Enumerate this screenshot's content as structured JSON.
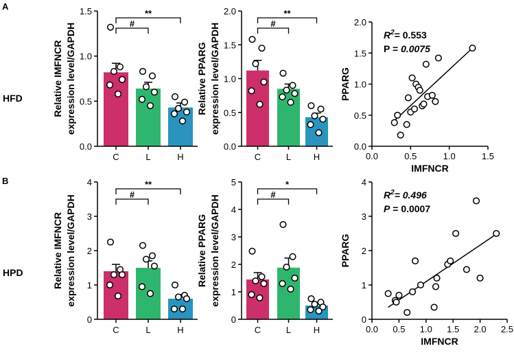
{
  "panel_labels": {
    "a": "A",
    "b": "B"
  },
  "row_labels": {
    "top": "HFD",
    "bottom": "HPD"
  },
  "colors": {
    "C": "#cc2f6a",
    "L": "#2fb66e",
    "H": "#2a94bf",
    "ink": "#000000"
  },
  "chart_data": [
    {
      "id": "a1",
      "type": "bar",
      "title": "",
      "ylabel": "Relative IMFNCR\nexpression level/GAPDH",
      "categories": [
        "C",
        "L",
        "H"
      ],
      "values": [
        0.82,
        0.64,
        0.43
      ],
      "errors": [
        0.1,
        0.07,
        0.05
      ],
      "points": [
        [
          1.32,
          0.88,
          0.83,
          0.74,
          0.68,
          0.58
        ],
        [
          0.83,
          0.78,
          0.66,
          0.6,
          0.52,
          0.45
        ],
        [
          0.55,
          0.49,
          0.42,
          0.38,
          0.36,
          0.28
        ]
      ],
      "ylim": [
        0,
        1.5
      ],
      "yticks": [
        "0.0",
        "0.5",
        "1.0",
        "1.5"
      ],
      "significance": [
        {
          "from": 0,
          "to": 1,
          "label": "#"
        },
        {
          "from": 0,
          "to": 2,
          "label": "**"
        }
      ]
    },
    {
      "id": "a2",
      "type": "bar",
      "title": "",
      "ylabel": "Relative PPARG\nexpression level/GAPDH",
      "categories": [
        "C",
        "L",
        "H"
      ],
      "values": [
        1.12,
        0.85,
        0.43
      ],
      "errors": [
        0.15,
        0.07,
        0.06
      ],
      "points": [
        [
          1.58,
          1.45,
          1.22,
          0.95,
          0.82,
          0.62
        ],
        [
          1.08,
          0.9,
          0.83,
          0.78,
          0.73,
          0.65
        ],
        [
          0.6,
          0.55,
          0.45,
          0.4,
          0.32,
          0.2
        ]
      ],
      "ylim": [
        0,
        2.0
      ],
      "yticks": [
        "0.0",
        "0.5",
        "1.0",
        "1.5",
        "2.0"
      ],
      "significance": [
        {
          "from": 0,
          "to": 1,
          "label": "#"
        },
        {
          "from": 0,
          "to": 2,
          "label": "**"
        }
      ]
    },
    {
      "id": "a3",
      "type": "scatter",
      "xlabel": "IMFNCR",
      "ylabel": "PPARG",
      "x": [
        0.29,
        0.33,
        0.37,
        0.45,
        0.47,
        0.5,
        0.52,
        0.55,
        0.57,
        0.6,
        0.62,
        0.65,
        0.67,
        0.7,
        0.72,
        0.78,
        0.82,
        0.86,
        1.3
      ],
      "y": [
        0.38,
        0.5,
        0.18,
        0.35,
        0.78,
        0.55,
        1.1,
        0.6,
        1.0,
        0.95,
        0.9,
        0.65,
        0.68,
        1.32,
        0.8,
        0.82,
        0.72,
        1.42,
        1.58
      ],
      "fit": {
        "x": [
          0.28,
          1.3
        ],
        "y": [
          0.4,
          1.58
        ]
      },
      "xlim": [
        0,
        1.5
      ],
      "ylim": [
        0,
        2.0
      ],
      "xticks": [
        "0.0",
        "0.5",
        "1.0",
        "1.5"
      ],
      "yticks": [
        "0.0",
        "0.5",
        "1.0",
        "1.5",
        "2.0"
      ],
      "stats": {
        "r_label": "R",
        "r_sup": "2",
        "r_value": "= 0.553",
        "r_italic": false,
        "p_label": "P",
        "p_value": "0.0075",
        "p_label_italic": false,
        "p_value_italic": true
      }
    },
    {
      "id": "b1",
      "type": "bar",
      "title": "",
      "ylabel": "Relative IMFNCR\nexpression level/GAPDH",
      "categories": [
        "C",
        "L",
        "H"
      ],
      "values": [
        1.4,
        1.5,
        0.6
      ],
      "errors": [
        0.2,
        0.2,
        0.12
      ],
      "points": [
        [
          2.25,
          1.45,
          1.3,
          1.3,
          1.0,
          0.68
        ],
        [
          2.15,
          1.85,
          1.75,
          1.55,
          0.95,
          0.75
        ],
        [
          1.0,
          0.7,
          0.65,
          0.6,
          0.3,
          0.3
        ]
      ],
      "ylim": [
        0,
        4
      ],
      "yticks": [
        "0",
        "1",
        "2",
        "3",
        "4"
      ],
      "significance": [
        {
          "from": 0,
          "to": 1,
          "label": "#"
        },
        {
          "from": 0,
          "to": 2,
          "label": "**"
        }
      ]
    },
    {
      "id": "b2",
      "type": "bar",
      "title": "",
      "ylabel": "Relative PPARG\nexpression level/GAPDH",
      "categories": [
        "C",
        "L",
        "H"
      ],
      "values": [
        1.45,
        1.88,
        0.5
      ],
      "errors": [
        0.25,
        0.35,
        0.1
      ],
      "points": [
        [
          2.48,
          1.55,
          1.4,
          1.3,
          0.9,
          0.78
        ],
        [
          3.45,
          2.28,
          1.9,
          1.5,
          1.3,
          1.1
        ],
        [
          0.75,
          0.62,
          0.55,
          0.45,
          0.35,
          0.3
        ]
      ],
      "ylim": [
        0,
        5
      ],
      "yticks": [
        "0",
        "1",
        "2",
        "3",
        "4",
        "5"
      ],
      "significance": [
        {
          "from": 0,
          "to": 1,
          "label": "#"
        },
        {
          "from": 0,
          "to": 2,
          "label": "*"
        }
      ]
    },
    {
      "id": "b3",
      "type": "scatter",
      "xlabel": "IMFNCR",
      "ylabel": "PPARG",
      "x": [
        0.3,
        0.43,
        0.45,
        0.5,
        0.65,
        0.75,
        0.8,
        0.9,
        1.15,
        1.18,
        1.2,
        1.4,
        1.45,
        1.55,
        1.75,
        1.93,
        2.0,
        2.3
      ],
      "y": [
        0.75,
        0.55,
        0.5,
        0.7,
        0.2,
        0.8,
        1.7,
        1.0,
        0.35,
        0.95,
        1.2,
        1.6,
        1.7,
        2.5,
        1.45,
        3.45,
        1.2,
        2.5
      ],
      "fit": {
        "x": [
          0.3,
          2.3
        ],
        "y": [
          0.35,
          2.48
        ]
      },
      "xlim": [
        0,
        2.5
      ],
      "ylim": [
        0,
        4
      ],
      "xticks": [
        "0.0",
        "0.5",
        "1.0",
        "1.5",
        "2.0",
        "2.5"
      ],
      "yticks": [
        "0",
        "1",
        "2",
        "3",
        "4"
      ],
      "stats": {
        "r_label": "R",
        "r_sup": "2",
        "r_value": "= 0.496",
        "r_italic": true,
        "p_label": "P",
        "p_value": "0.0007",
        "p_label_italic": true,
        "p_value_italic": false
      }
    }
  ]
}
